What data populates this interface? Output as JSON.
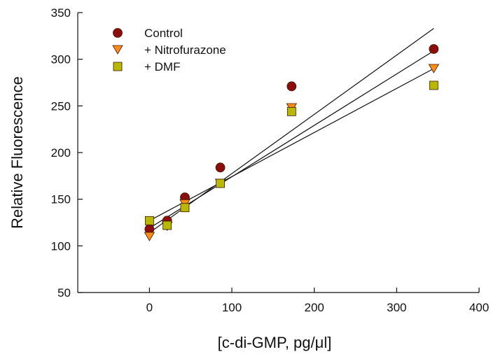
{
  "chart_data": {
    "type": "scatter",
    "title": "",
    "xlabel": "[c-di-GMP, pg/μl]",
    "ylabel": "Relative Fluorescence",
    "xlim": [
      -87,
      400
    ],
    "ylim": [
      50,
      350
    ],
    "x_ticks": [
      "0",
      "100",
      "200",
      "300",
      "400"
    ],
    "y_ticks": [
      "50",
      "100",
      "150",
      "200",
      "250",
      "300",
      "350"
    ],
    "grid": false,
    "legend_position": "top-left",
    "series": [
      {
        "name": "Control",
        "marker": "circle",
        "color": "#8b0d0d",
        "x": [
          0,
          21.5,
          43,
          86,
          172.5,
          345
        ],
        "y": [
          118,
          127,
          152,
          184,
          271,
          311
        ],
        "fit": [
          [
            0,
            114
          ],
          [
            345,
            333
          ]
        ]
      },
      {
        "name": "+ Nitrofurazone",
        "marker": "triangle-down",
        "color": "#ff8c1a",
        "x": [
          0,
          21.5,
          43,
          86,
          172.5,
          345
        ],
        "y": [
          110,
          121,
          145,
          167,
          248,
          290
        ],
        "fit": [
          [
            0,
            119
          ],
          [
            345,
            309
          ]
        ]
      },
      {
        "name": "+ DMF",
        "marker": "square",
        "color": "#b8b800",
        "x": [
          0,
          21.5,
          43,
          86,
          172.5,
          345
        ],
        "y": [
          127,
          122,
          141,
          167,
          244,
          272
        ],
        "fit": [
          [
            0,
            127
          ],
          [
            345,
            290
          ]
        ]
      }
    ]
  }
}
